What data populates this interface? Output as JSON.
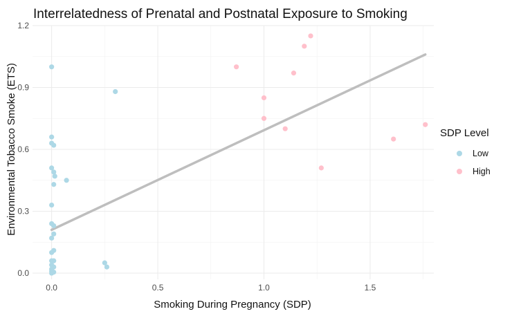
{
  "chart_data": {
    "type": "scatter",
    "title": "Interrelatedness of Prenatal and Postnatal Exposure to Smoking",
    "xlabel": "Smoking During Pregnancy (SDP)",
    "ylabel": "Environmental Tobacco Smoke (ETS)",
    "xlim": [
      -0.09,
      1.8
    ],
    "ylim": [
      -0.03,
      1.2
    ],
    "x_ticks": [
      0.0,
      0.5,
      1.0,
      1.5
    ],
    "x_tick_labels": [
      "0.0",
      "0.5",
      "1.0",
      "1.5"
    ],
    "y_ticks": [
      0.0,
      0.3,
      0.6,
      0.9,
      1.2
    ],
    "y_tick_labels": [
      "0.0",
      "0.3",
      "0.6",
      "0.9",
      "1.2"
    ],
    "grid": true,
    "legend": {
      "title": "SDP Level",
      "position": "right",
      "entries": [
        {
          "label": "Low",
          "color": "#add8e6"
        },
        {
          "label": "High",
          "color": "#ffc0cb"
        }
      ]
    },
    "series": [
      {
        "name": "Low",
        "color": "#add8e6",
        "points": [
          [
            0.0,
            1.0
          ],
          [
            0.0,
            0.66
          ],
          [
            0.0,
            0.63
          ],
          [
            0.01,
            0.62
          ],
          [
            0.0,
            0.51
          ],
          [
            0.01,
            0.49
          ],
          [
            0.015,
            0.47
          ],
          [
            0.07,
            0.45
          ],
          [
            0.01,
            0.43
          ],
          [
            0.0,
            0.33
          ],
          [
            0.0,
            0.24
          ],
          [
            0.01,
            0.23
          ],
          [
            0.01,
            0.19
          ],
          [
            0.0,
            0.17
          ],
          [
            0.01,
            0.11
          ],
          [
            0.0,
            0.1
          ],
          [
            0.0,
            0.06
          ],
          [
            0.01,
            0.06
          ],
          [
            0.0,
            0.04
          ],
          [
            0.01,
            0.03
          ],
          [
            0.0,
            0.02
          ],
          [
            0.0,
            0.01
          ],
          [
            0.01,
            0.005
          ],
          [
            0.0,
            0.0
          ],
          [
            0.25,
            0.05
          ],
          [
            0.26,
            0.03
          ],
          [
            0.3,
            0.88
          ]
        ]
      },
      {
        "name": "High",
        "color": "#ffc0cb",
        "points": [
          [
            0.87,
            1.0
          ],
          [
            1.0,
            0.85
          ],
          [
            1.0,
            0.75
          ],
          [
            1.1,
            0.7
          ],
          [
            1.14,
            0.97
          ],
          [
            1.19,
            1.1
          ],
          [
            1.22,
            1.15
          ],
          [
            1.27,
            0.51
          ],
          [
            1.61,
            0.65
          ],
          [
            1.76,
            0.72
          ]
        ]
      }
    ],
    "trend_line": {
      "color": "#bebebe",
      "x": [
        0.0,
        1.76
      ],
      "y": [
        0.21,
        1.06
      ]
    }
  }
}
